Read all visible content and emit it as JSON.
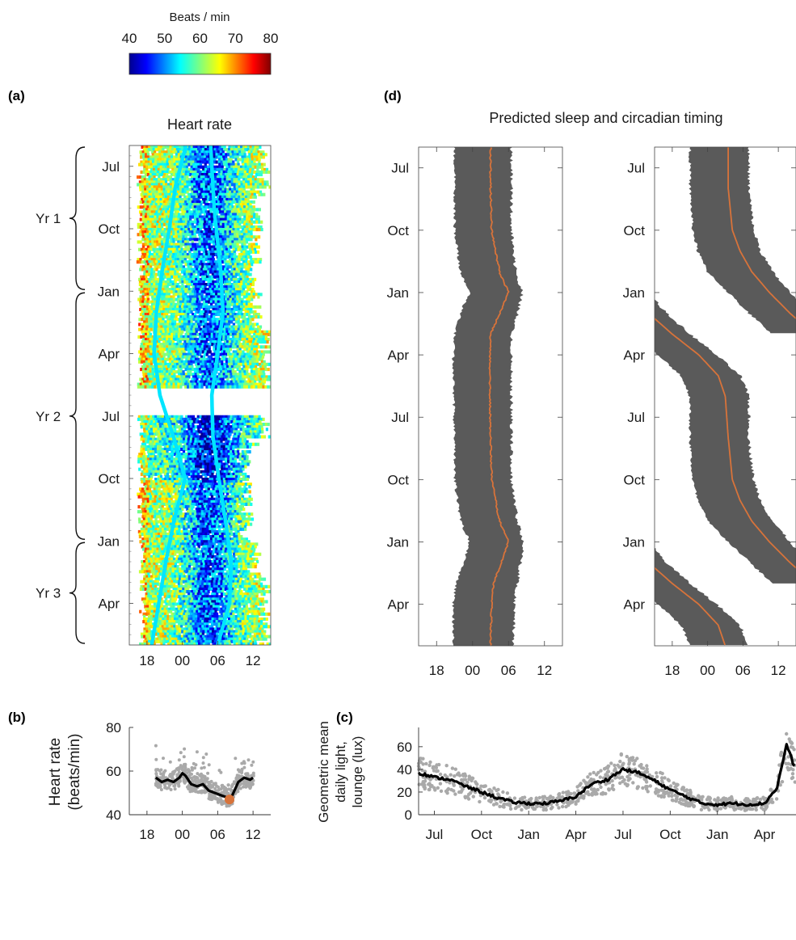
{
  "colorbar": {
    "label": "Beats / min",
    "ticks": [
      40,
      50,
      60,
      70,
      80
    ],
    "colormap": "jet"
  },
  "panels": {
    "a": {
      "label": "(a)",
      "title": "Heart rate"
    },
    "b": {
      "label": "(b)"
    },
    "c": {
      "label": "(c)"
    },
    "d": {
      "label": "(d)",
      "title": "Predicted sleep and circadian timing"
    }
  },
  "raster_axis": {
    "x_ticks": [
      "18",
      "00",
      "06",
      "12"
    ],
    "y_ticks": [
      "Jul",
      "Oct",
      "Jan",
      "Apr",
      "Jul",
      "Oct",
      "Jan",
      "Apr"
    ],
    "year_labels": [
      "Yr 1",
      "Yr 2",
      "Yr 3"
    ]
  },
  "chart_data": [
    {
      "id": "heart-rate-raster",
      "type": "heatmap",
      "title": "Heart rate",
      "x_range_hours": [
        15,
        39
      ],
      "colorbar_range": [
        40,
        80
      ],
      "y_range_months_from_jun": [
        0,
        24
      ],
      "year_breaks_months_from_jun": [
        0,
        7,
        19,
        24
      ],
      "overlay_tracks": [
        {
          "name": "",
          "color": "#00e5ff",
          "points": [
            [
              0,
              24.6
            ],
            [
              2,
              22.8
            ],
            [
              4,
              21.8
            ],
            [
              6,
              20.6
            ],
            [
              8,
              19.6
            ],
            [
              10,
              19.2
            ],
            [
              12,
              20.2
            ],
            [
              14,
              22.5
            ],
            [
              16,
              24.5
            ],
            [
              18,
              22.6
            ],
            [
              20,
              21.2
            ],
            [
              22,
              20.0
            ],
            [
              24,
              18.8
            ]
          ]
        },
        {
          "name": "",
          "color": "#00e5ff",
          "points": [
            [
              0,
              28.8
            ],
            [
              3,
              29.4
            ],
            [
              6,
              30.5
            ],
            [
              8,
              30.9
            ],
            [
              10,
              30.0
            ],
            [
              12,
              29.0
            ],
            [
              14,
              29.2
            ],
            [
              16,
              30.2
            ],
            [
              18,
              31.3
            ],
            [
              20,
              32.3
            ],
            [
              22,
              32.0
            ],
            [
              24,
              30.0
            ]
          ]
        }
      ]
    },
    {
      "id": "heart-rate-profile",
      "type": "scatter",
      "xlabel": "",
      "ylabel": "Heart rate (beats/min)",
      "x_ticks": [
        "18",
        "00",
        "06",
        "12"
      ],
      "x_range_hours": [
        15,
        39
      ],
      "ylim": [
        40,
        80
      ],
      "y_ticks": [
        40,
        60,
        80
      ],
      "mean_line": {
        "x": [
          19.5,
          20.5,
          21.5,
          22.5,
          23.5,
          24.0,
          24.5,
          25.5,
          26.5,
          27.5,
          28.5,
          29.5,
          30.5,
          31.5,
          32.0,
          32.5,
          33.5,
          34.5,
          35.5,
          36.0
        ],
        "y": [
          57,
          55,
          56,
          55,
          57,
          59,
          58,
          54,
          53,
          54,
          51,
          50,
          49,
          48,
          47,
          49,
          55,
          57,
          56,
          57
        ]
      },
      "marker": {
        "x": 32.0,
        "y": 47,
        "color": "#d8733a"
      }
    },
    {
      "id": "daily-light",
      "type": "scatter",
      "ylabel": "Geometric mean daily light, lounge (lux)",
      "x_ticks": [
        "Jul",
        "Oct",
        "Jan",
        "Apr",
        "Jul",
        "Oct",
        "Jan",
        "Apr"
      ],
      "x_range_months_from_jun": [
        0,
        24
      ],
      "ylim": [
        0,
        77
      ],
      "y_ticks": [
        0,
        20,
        40,
        60
      ],
      "mean_line": {
        "x": [
          0,
          1,
          2,
          3,
          4,
          5,
          6,
          7,
          8,
          9,
          10,
          11,
          12,
          13,
          14,
          15,
          16,
          17,
          18,
          19,
          20,
          21,
          22,
          22.8,
          23.4,
          24
        ],
        "y": [
          37,
          33,
          31,
          25,
          20,
          15,
          11,
          10,
          10,
          12,
          16,
          27,
          31,
          40,
          37,
          30,
          22,
          16,
          10,
          9,
          10,
          9,
          10,
          24,
          62,
          38
        ]
      }
    },
    {
      "id": "predicted-sleep-left",
      "type": "area",
      "x_ticks": [
        "18",
        "00",
        "06",
        "12"
      ],
      "x_range_hours": [
        15,
        39
      ],
      "y_ticks": [
        "Jul",
        "Oct",
        "Jan",
        "Apr",
        "Jul",
        "Oct",
        "Jan",
        "Apr"
      ],
      "band_color": "#5a5a5a",
      "line_color": "#d8733a",
      "series": [
        {
          "name": "",
          "y_months_from_jun": [
            0,
            2,
            4,
            6,
            7,
            8,
            9,
            10,
            12,
            14,
            16,
            18,
            19,
            20,
            21,
            22,
            24
          ],
          "onset_hours": [
            21.0,
            21.0,
            21.0,
            22.0,
            23.5,
            22.0,
            21.0,
            20.8,
            20.8,
            21.0,
            21.0,
            22.0,
            23.5,
            22.5,
            21.2,
            20.8,
            20.8
          ],
          "midpoint_hours": [
            27.0,
            27.0,
            27.2,
            28.5,
            30.0,
            28.5,
            27.0,
            26.9,
            26.9,
            27.0,
            27.2,
            28.5,
            30.0,
            28.8,
            27.5,
            27.2,
            27.0
          ],
          "offset_hours": [
            30.5,
            30.5,
            30.5,
            31.2,
            32.3,
            31.5,
            30.5,
            30.5,
            30.5,
            30.5,
            30.5,
            31.5,
            32.5,
            32.0,
            31.5,
            31.0,
            30.8
          ]
        }
      ]
    },
    {
      "id": "predicted-sleep-right",
      "type": "area",
      "x_ticks": [
        "18",
        "00",
        "06",
        "12"
      ],
      "x_range_hours": [
        15,
        39
      ],
      "y_ticks": [
        "Jul",
        "Oct",
        "Jan",
        "Apr",
        "Jul",
        "Oct",
        "Jan",
        "Apr"
      ],
      "band_color": "#5a5a5a",
      "line_color": "#d8733a",
      "series": [
        {
          "name": "",
          "y_months_from_jun": [
            0,
            2,
            4,
            5,
            6,
            7,
            8,
            9,
            10,
            12,
            14,
            16,
            17,
            18,
            19,
            20,
            21,
            22,
            24
          ],
          "onset_hours": [
            21.0,
            21.0,
            21.5,
            22.3,
            24.0,
            27.5,
            31.0,
            35.0,
            0,
            0,
            21.0,
            21.4,
            22.3,
            24.0,
            27.5,
            31.2,
            35.0,
            0,
            0
          ],
          "midpoint_hours": [
            27.5,
            27.5,
            28.2,
            29.5,
            31.5,
            34.5,
            38.0,
            0,
            0,
            0,
            27.5,
            28.2,
            29.5,
            31.5,
            34.5,
            38.0,
            0,
            0,
            0
          ],
          "offset_hours": [
            31.0,
            31.0,
            31.8,
            33.0,
            35.0,
            38.0,
            39.0,
            0,
            0,
            0,
            31.0,
            31.8,
            33.0,
            35.0,
            38.0,
            39.0,
            0,
            0,
            0
          ]
        }
      ]
    }
  ]
}
